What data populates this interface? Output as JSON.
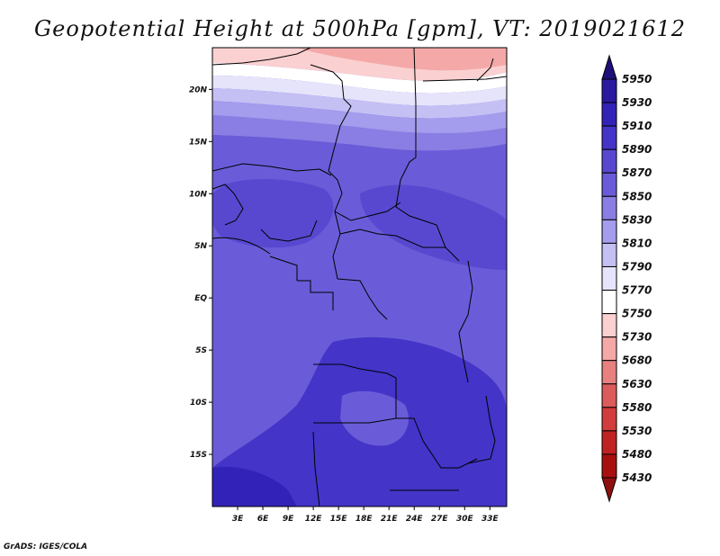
{
  "title": "Geopotential Height at 500hPa [gpm], VT: 2019021612",
  "credit": "GrADS: IGES/COLA",
  "map": {
    "lon_range": [
      0,
      35
    ],
    "lat_range": [
      -20,
      24
    ],
    "lon_ticks": [
      "3E",
      "6E",
      "9E",
      "12E",
      "15E",
      "18E",
      "21E",
      "24E",
      "27E",
      "30E",
      "33E"
    ],
    "lat_ticks": [
      "20N",
      "15N",
      "10N",
      "5N",
      "EQ",
      "5S",
      "10S",
      "15S"
    ]
  },
  "colorbar": {
    "labels": [
      "5950",
      "5930",
      "5910",
      "5890",
      "5870",
      "5850",
      "5830",
      "5810",
      "5790",
      "5770",
      "5750",
      "5730",
      "5680",
      "5630",
      "5580",
      "5530",
      "5480",
      "5430"
    ],
    "colors": [
      "#1e1078",
      "#2a1aa0",
      "#3322b8",
      "#4434c8",
      "#5848d0",
      "#6a5cd8",
      "#8a7ee4",
      "#a49cec",
      "#c4c0f4",
      "#e6e4fa",
      "#ffffff",
      "#fbd0d0",
      "#f4a8a8",
      "#e88080",
      "#dc5c5c",
      "#d23c3c",
      "#c02222",
      "#a81010",
      "#901010"
    ]
  }
}
